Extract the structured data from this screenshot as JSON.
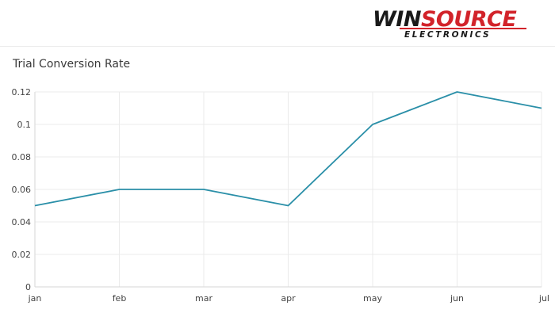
{
  "logo": {
    "part1": "WIN",
    "part2": "SOURCE",
    "sub": "ELECTRONICS",
    "color1": "#1a1a1a",
    "color2": "#d2232a"
  },
  "colors": {
    "line": "#2a8fa8",
    "grid": "#ebebeb",
    "axis": "#d6d6d6"
  },
  "chart_data": {
    "type": "line",
    "title": "Trial Conversion Rate",
    "categories": [
      "jan",
      "feb",
      "mar",
      "apr",
      "may",
      "jun",
      "jul"
    ],
    "values": [
      0.05,
      0.06,
      0.06,
      0.05,
      0.1,
      0.12,
      0.11
    ],
    "ylim": [
      0,
      0.12
    ],
    "yticks": [
      "0",
      "0.02",
      "0.04",
      "0.06",
      "0.08",
      "0.1",
      "0.12"
    ],
    "xlabel": "",
    "ylabel": "",
    "grid": true,
    "legend": false
  }
}
